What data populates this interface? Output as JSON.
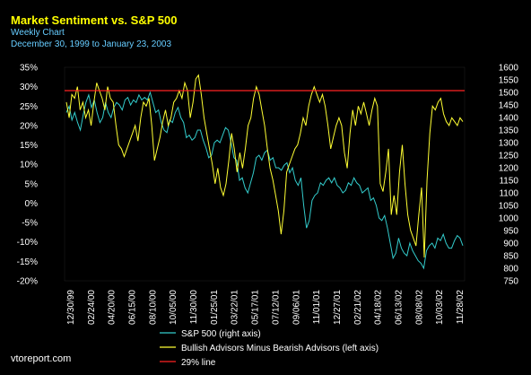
{
  "header": {
    "title": "Market Sentiment vs. S&P 500",
    "subtitle": "Weekly Chart",
    "date_range": "December 30, 1999 to January 23, 2003"
  },
  "footer": {
    "credit": "vtoreport.com"
  },
  "colors": {
    "background": "#000000",
    "sp500": "#33cccc",
    "sentiment": "#ffff33",
    "line29": "#ff2222",
    "text": "#ffffff"
  },
  "chart_data": {
    "type": "line",
    "x_tick_labels": [
      "12/30/99",
      "02/24/00",
      "04/20/00",
      "06/15/00",
      "08/10/00",
      "10/05/00",
      "11/30/00",
      "01/25/01",
      "03/22/01",
      "05/17/01",
      "07/12/01",
      "09/06/01",
      "11/01/01",
      "12/27/01",
      "02/21/02",
      "04/18/02",
      "06/13/02",
      "08/08/02",
      "10/03/02",
      "11/28/02"
    ],
    "left_axis": {
      "ylim": [
        -20,
        35
      ],
      "ticks": [
        "35%",
        "30%",
        "25%",
        "20%",
        "15%",
        "10%",
        "5%",
        "0%",
        "-5%",
        "-10%",
        "-15%",
        "-20%"
      ]
    },
    "right_axis": {
      "ylim": [
        750,
        1600
      ],
      "ticks": [
        "1600",
        "1550",
        "1500",
        "1450",
        "1400",
        "1350",
        "1300",
        "1250",
        "1200",
        "1150",
        "1100",
        "1050",
        "1000",
        "950",
        "900",
        "850",
        "800",
        "750"
      ]
    },
    "series": [
      {
        "name": "S&P 500 (right axis)",
        "axis": "right",
        "values": [
          1420,
          1445,
          1390,
          1420,
          1380,
          1350,
          1410,
          1460,
          1490,
          1440,
          1470,
          1420,
          1380,
          1400,
          1460,
          1420,
          1400,
          1440,
          1460,
          1450,
          1430,
          1470,
          1480,
          1450,
          1470,
          1460,
          1490,
          1470,
          1480,
          1470,
          1500,
          1460,
          1420,
          1430,
          1380,
          1350,
          1340,
          1390,
          1380,
          1420,
          1440,
          1400,
          1380,
          1320,
          1330,
          1310,
          1320,
          1350,
          1350,
          1310,
          1280,
          1240,
          1250,
          1300,
          1310,
          1300,
          1330,
          1360,
          1350,
          1300,
          1240,
          1230,
          1150,
          1160,
          1120,
          1100,
          1140,
          1180,
          1240,
          1250,
          1230,
          1260,
          1270,
          1230,
          1240,
          1200,
          1200,
          1190,
          1210,
          1220,
          1180,
          1200,
          1150,
          1130,
          1160,
          1050,
          960,
          990,
          1070,
          1090,
          1100,
          1140,
          1130,
          1150,
          1160,
          1140,
          1160,
          1130,
          1120,
          1100,
          1110,
          1140,
          1130,
          1160,
          1140,
          1130,
          1100,
          1110,
          1120,
          1070,
          1080,
          1050,
          1000,
          990,
          1010,
          960,
          900,
          840,
          860,
          920,
          880,
          860,
          850,
          900,
          870,
          850,
          830,
          820,
          800,
          870,
          890,
          900,
          880,
          920,
          910,
          935,
          900,
          880,
          880,
          910,
          930,
          920,
          890
        ]
      },
      {
        "name": "Bullish Advisors Minus Bearish Advisors (left axis)",
        "axis": "left",
        "values": [
          26,
          22,
          28,
          27,
          30,
          24,
          26,
          22,
          24,
          20,
          26,
          31,
          29,
          27,
          24,
          30,
          27,
          26,
          20,
          15,
          14,
          12,
          14,
          16,
          18,
          20,
          16,
          22,
          26,
          25,
          27,
          20,
          11,
          14,
          17,
          21,
          24,
          20,
          22,
          26,
          27,
          29,
          27,
          31,
          29,
          22,
          26,
          32,
          33,
          28,
          22,
          18,
          14,
          10,
          5,
          9,
          4,
          2,
          5,
          11,
          18,
          14,
          8,
          13,
          9,
          14,
          20,
          22,
          27,
          30,
          28,
          24,
          20,
          14,
          9,
          6,
          2,
          -2,
          -8,
          -2,
          8,
          10,
          12,
          14,
          15,
          18,
          22,
          20,
          25,
          28,
          30,
          28,
          26,
          28,
          25,
          20,
          14,
          17,
          20,
          22,
          20,
          13,
          9,
          18,
          24,
          20,
          25,
          23,
          26,
          23,
          20,
          24,
          27,
          25,
          5,
          3,
          8,
          14,
          -3,
          2,
          -3,
          8,
          15,
          5,
          -3,
          -7,
          -9,
          -11,
          -3,
          4,
          -14,
          6,
          18,
          25,
          24,
          26,
          27,
          23,
          21,
          20,
          22,
          21,
          20,
          22,
          21
        ]
      },
      {
        "name": "29% line",
        "axis": "left",
        "values": [
          29,
          29
        ]
      }
    ]
  }
}
